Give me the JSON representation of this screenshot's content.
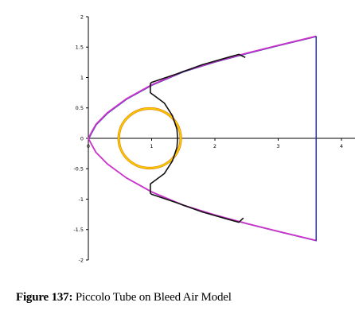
{
  "chart_data": {
    "type": "line",
    "xlim": [
      0,
      4.2
    ],
    "ylim": [
      -2,
      2
    ],
    "x_ticks": [
      "0",
      "1",
      "2",
      "3",
      "4"
    ],
    "y_ticks": [
      "2",
      "1.5",
      "1",
      "0.5",
      "0",
      "-0.5",
      "-1",
      "-1.5",
      "-2"
    ],
    "grid": false,
    "colors": {
      "parabola": "#cc33cc",
      "parabola_shadow": "#3344aa",
      "outlet": "#1a2a99",
      "piccolo_tube": "#f2cc00",
      "piccolo_tube_edge": "#ee7700",
      "inner_contour": "#111111"
    },
    "series": [
      {
        "role": "parabola",
        "points": [
          [
            3.6,
            1.68
          ],
          [
            3.0,
            1.53
          ],
          [
            2.5,
            1.4
          ],
          [
            2.0,
            1.26
          ],
          [
            1.5,
            1.1
          ],
          [
            1.0,
            0.88
          ],
          [
            0.6,
            0.65
          ],
          [
            0.3,
            0.42
          ],
          [
            0.12,
            0.23
          ],
          [
            0.05,
            0.1
          ],
          [
            0.0,
            0.0
          ],
          [
            0.05,
            -0.1
          ],
          [
            0.12,
            -0.23
          ],
          [
            0.3,
            -0.42
          ],
          [
            0.6,
            -0.65
          ],
          [
            1.0,
            -0.88
          ],
          [
            1.5,
            -1.1
          ],
          [
            2.0,
            -1.26
          ],
          [
            2.5,
            -1.4
          ],
          [
            3.0,
            -1.53
          ],
          [
            3.6,
            -1.68
          ]
        ]
      },
      {
        "role": "outlet",
        "points": [
          [
            3.6,
            1.68
          ],
          [
            3.6,
            -1.68
          ]
        ]
      },
      {
        "role": "piccolo_tube",
        "center": [
          0.97,
          0.0
        ],
        "radius": 0.49
      },
      {
        "role": "inner_contour",
        "points": [
          [
            2.48,
            1.33
          ],
          [
            2.38,
            1.38
          ],
          [
            2.2,
            1.33
          ],
          [
            1.8,
            1.21
          ],
          [
            1.4,
            1.06
          ],
          [
            1.0,
            0.92
          ],
          [
            0.98,
            0.9
          ],
          [
            0.98,
            0.75
          ],
          [
            1.2,
            0.58
          ],
          [
            1.33,
            0.37
          ],
          [
            1.4,
            0.15
          ],
          [
            1.41,
            0.0
          ],
          [
            1.4,
            -0.15
          ],
          [
            1.33,
            -0.37
          ],
          [
            1.2,
            -0.58
          ],
          [
            0.98,
            -0.75
          ],
          [
            0.98,
            -0.9
          ],
          [
            1.0,
            -0.92
          ],
          [
            1.4,
            -1.06
          ],
          [
            1.8,
            -1.21
          ],
          [
            2.2,
            -1.33
          ],
          [
            2.38,
            -1.38
          ],
          [
            2.45,
            -1.31
          ]
        ]
      }
    ]
  },
  "caption": {
    "label": "Figure 137:",
    "text": "Piccolo Tube on Bleed Air Model"
  }
}
